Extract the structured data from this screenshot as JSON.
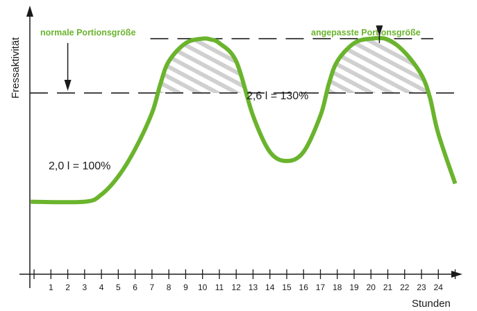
{
  "chart_data": {
    "type": "line",
    "title": "",
    "xlabel": "Stunden",
    "ylabel": "Fressaktivität",
    "x_ticks": [
      "1",
      "2",
      "3",
      "4",
      "5",
      "6",
      "7",
      "8",
      "9",
      "10",
      "11",
      "12",
      "13",
      "14",
      "15",
      "16",
      "17",
      "18",
      "19",
      "20",
      "21",
      "22",
      "23",
      "24"
    ],
    "xlim": [
      -0.25,
      25.1
    ],
    "ylim": [
      0,
      2.95
    ],
    "grid": false,
    "series": [
      {
        "color": "#6ab42d",
        "x": [
          -0.2,
          3,
          4,
          5,
          6,
          7,
          7.5,
          8,
          9,
          10,
          10.5,
          11,
          12,
          13,
          14,
          15,
          16,
          17,
          17.5,
          18,
          19,
          20,
          21,
          22,
          23,
          23.5,
          24,
          25
        ],
        "y": [
          0.8,
          0.8,
          0.88,
          1.08,
          1.38,
          1.78,
          2.1,
          2.35,
          2.55,
          2.6,
          2.59,
          2.55,
          2.35,
          1.75,
          1.35,
          1.25,
          1.35,
          1.75,
          2.1,
          2.35,
          2.55,
          2.6,
          2.59,
          2.45,
          2.2,
          1.95,
          1.55,
          1.0
        ]
      }
    ],
    "reference_lines": [
      {
        "y": 2.0,
        "label": "2,0 l = 100%",
        "style": "dashed",
        "color": "#1a1a1a"
      },
      {
        "y": 2.6,
        "label": "2,6 l = 130%",
        "style": "dashed",
        "color": "#1a1a1a"
      }
    ],
    "shaded_regions": [
      {
        "x_from": 7.0,
        "x_to": 13.0,
        "fill": "hatched",
        "color": "#d0d0d0"
      },
      {
        "x_from": 17.0,
        "x_to": 23.5,
        "fill": "hatched",
        "color": "#d0d0d0"
      }
    ],
    "annotations": [
      {
        "text": "normale Portionsgröße",
        "color": "#6ab42d",
        "arrow_to": {
          "x": 2,
          "y": 2.0
        }
      },
      {
        "text": "angepasste Portionsgröße",
        "color": "#6ab42d",
        "arrow_to": {
          "x": 20.5,
          "y": 2.6
        }
      }
    ]
  }
}
